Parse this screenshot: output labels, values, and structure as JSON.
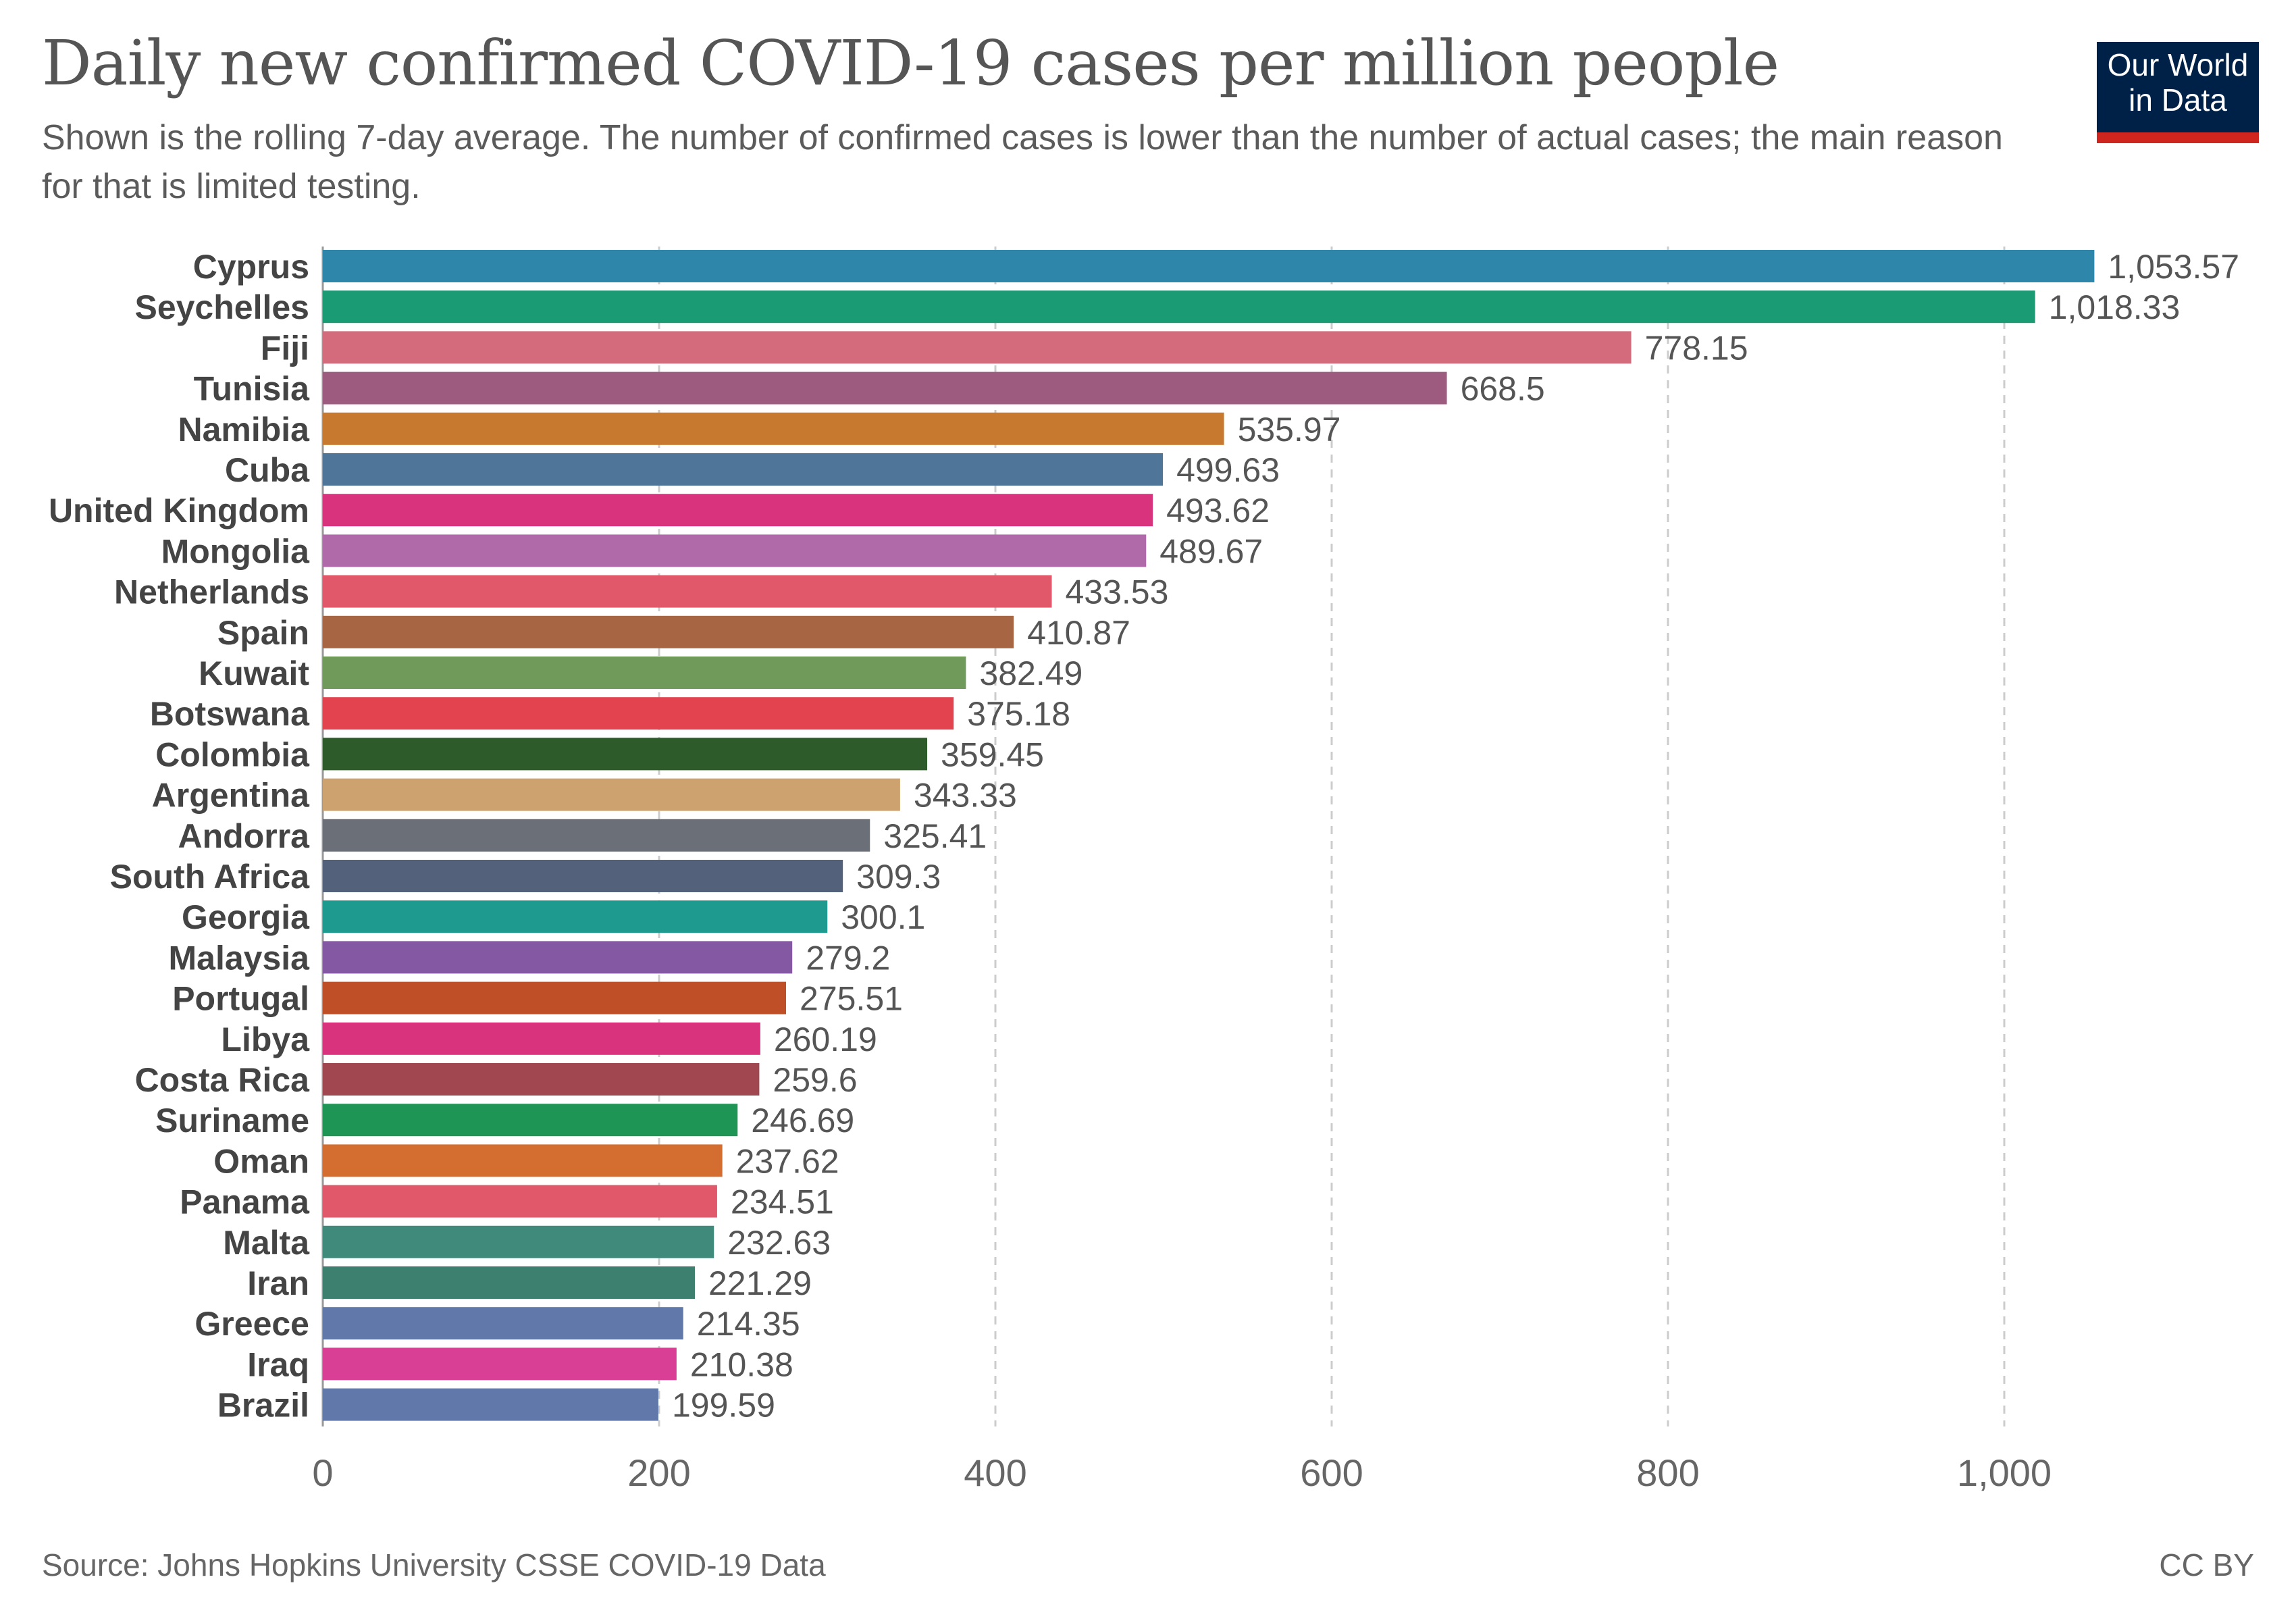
{
  "header": {
    "title": "Daily new confirmed COVID-19 cases per million people",
    "subtitle": "Shown is the rolling 7-day average. The number of confirmed cases is lower than the number of actual cases; the main reason for that is limited testing."
  },
  "logo": {
    "line1": "Our World",
    "line2": "in Data"
  },
  "footer": {
    "source": "Source: Johns Hopkins University CSSE COVID-19 Data",
    "license": "CC BY"
  },
  "chart_data": {
    "type": "bar",
    "orientation": "horizontal",
    "title": "Daily new confirmed COVID-19 cases per million people",
    "xlim": [
      0,
      1150
    ],
    "grid": true,
    "x_ticks": [
      0,
      200,
      400,
      600,
      800,
      1000
    ],
    "x_tick_labels": [
      "0",
      "200",
      "400",
      "600",
      "800",
      "1,000"
    ],
    "categories": [
      "Cyprus",
      "Seychelles",
      "Fiji",
      "Tunisia",
      "Namibia",
      "Cuba",
      "United Kingdom",
      "Mongolia",
      "Netherlands",
      "Spain",
      "Kuwait",
      "Botswana",
      "Colombia",
      "Argentina",
      "Andorra",
      "South Africa",
      "Georgia",
      "Malaysia",
      "Portugal",
      "Libya",
      "Costa Rica",
      "Suriname",
      "Oman",
      "Panama",
      "Malta",
      "Iran",
      "Greece",
      "Iraq",
      "Brazil"
    ],
    "values": [
      1053.57,
      1018.33,
      778.15,
      668.5,
      535.97,
      499.63,
      493.62,
      489.67,
      433.53,
      410.87,
      382.49,
      375.18,
      359.45,
      343.33,
      325.41,
      309.3,
      300.1,
      279.2,
      275.51,
      260.19,
      259.6,
      246.69,
      237.62,
      234.51,
      232.63,
      221.29,
      214.35,
      210.38,
      199.59
    ],
    "value_labels": [
      "1,053.57",
      "1,018.33",
      "778.15",
      "668.5",
      "535.97",
      "499.63",
      "493.62",
      "489.67",
      "433.53",
      "410.87",
      "382.49",
      "375.18",
      "359.45",
      "343.33",
      "325.41",
      "309.3",
      "300.1",
      "279.2",
      "275.51",
      "260.19",
      "259.6",
      "246.69",
      "237.62",
      "234.51",
      "232.63",
      "221.29",
      "214.35",
      "210.38",
      "199.59"
    ],
    "colors": [
      "#2e86ab",
      "#1b9b74",
      "#d36b7d",
      "#9e5b80",
      "#c7792f",
      "#4f7698",
      "#d9337e",
      "#b06aaa",
      "#e0586a",
      "#a76543",
      "#6f9a5a",
      "#e3434f",
      "#2e5b2a",
      "#cda26f",
      "#6b6f78",
      "#54617a",
      "#1e9a8f",
      "#8458a3",
      "#bf4f26",
      "#d9337e",
      "#a0474f",
      "#1e9455",
      "#d46e30",
      "#e0586a",
      "#3f8a7a",
      "#3d8070",
      "#6079aa",
      "#d93f95",
      "#6079aa"
    ]
  }
}
